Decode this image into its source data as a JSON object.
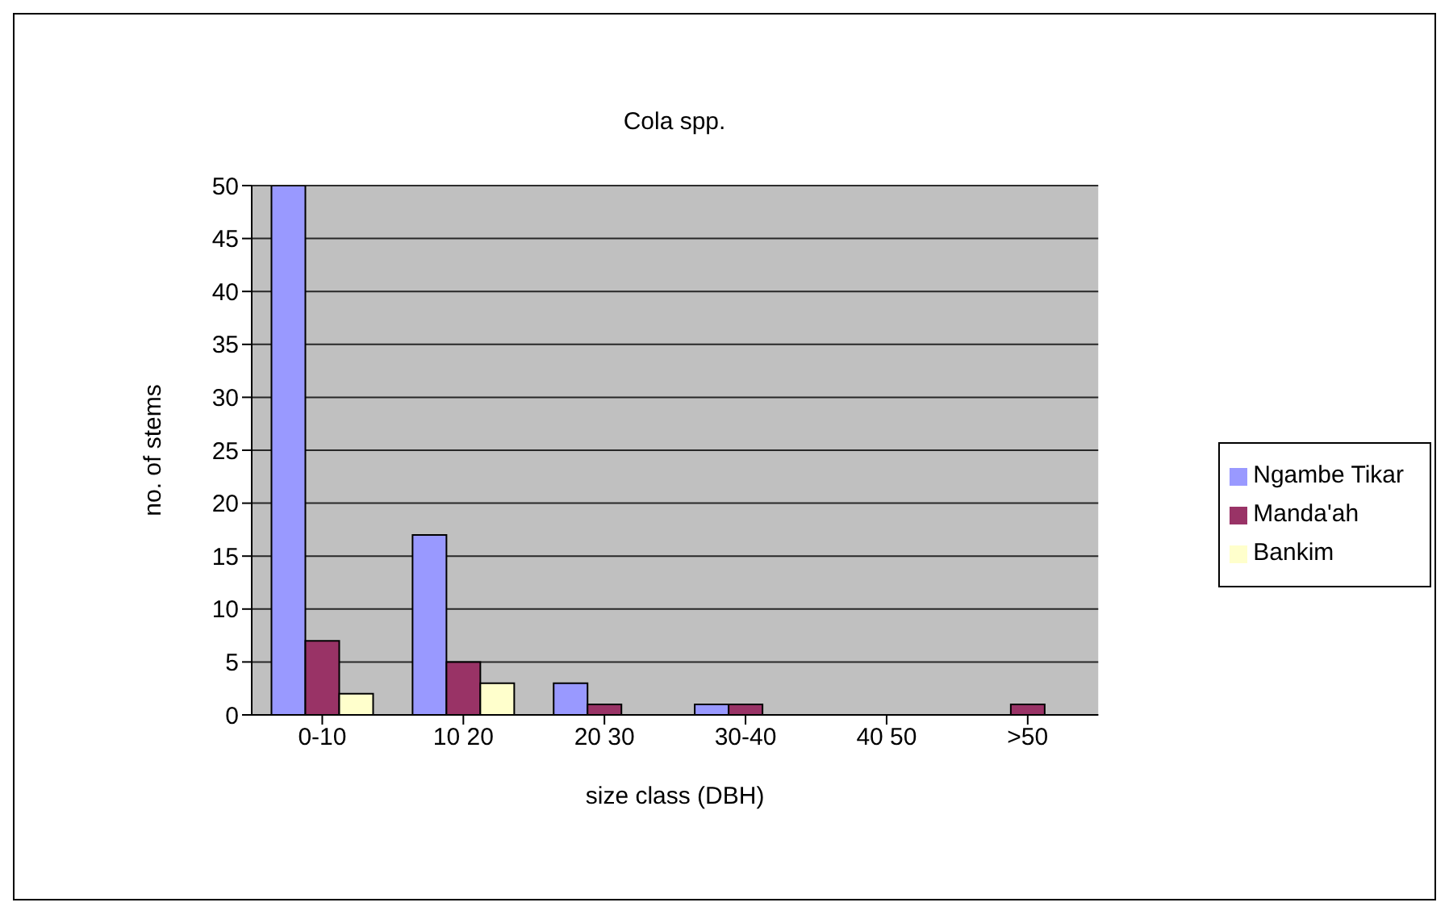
{
  "chart_data": {
    "type": "bar",
    "title": "Cola spp.",
    "xlabel": "size class (DBH)",
    "ylabel": "no. of stems",
    "categories": [
      "0-10",
      "10 20",
      "20 30",
      "30-40",
      "40 50",
      ">50"
    ],
    "series": [
      {
        "name": "Ngambe Tikar",
        "color": "#9999ff",
        "values": [
          50,
          17,
          3,
          1,
          0,
          0
        ]
      },
      {
        "name": "Manda'ah",
        "color": "#993366",
        "values": [
          7,
          5,
          1,
          1,
          0,
          1
        ]
      },
      {
        "name": "Bankim",
        "color": "#ffffcc",
        "values": [
          2,
          3,
          0,
          0,
          0,
          0
        ]
      }
    ],
    "ylim": [
      0,
      50
    ],
    "yticks": [
      0,
      5,
      10,
      15,
      20,
      25,
      30,
      35,
      40,
      45,
      50
    ],
    "grid": "y",
    "legend": "right"
  }
}
